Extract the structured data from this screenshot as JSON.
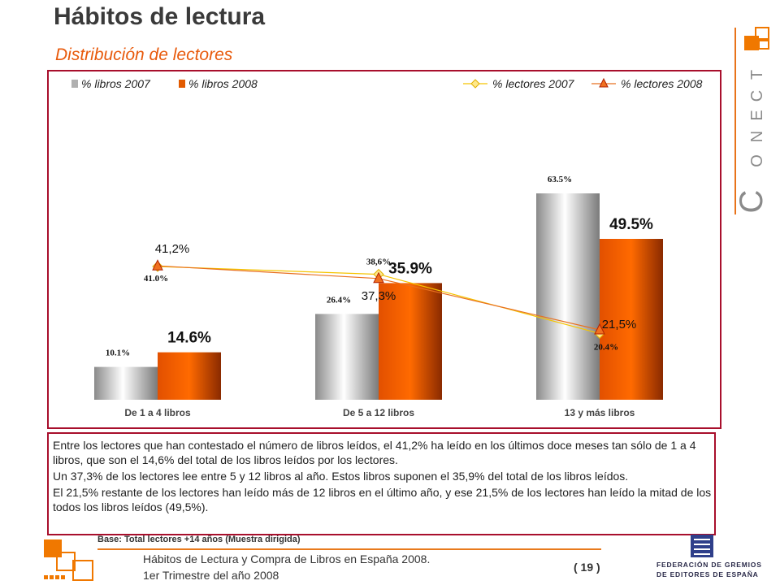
{
  "header": {
    "title": "Hábitos de lectura",
    "subtitle": "Distribución de lectores"
  },
  "brand": {
    "logo_text": "CONECTA"
  },
  "chart_data": {
    "type": "bar",
    "categories": [
      "De 1 a 4 libros",
      "De 5 a 12 libros",
      "13 y más libros"
    ],
    "series": [
      {
        "name": "% libros 2007",
        "kind": "bar",
        "values": [
          10.1,
          26.4,
          63.5
        ],
        "labels": [
          "10.1%",
          "26.4%",
          "63.5%"
        ],
        "color": "#c0c0c0"
      },
      {
        "name": "% libros 2008",
        "kind": "bar",
        "values": [
          14.6,
          35.9,
          49.5
        ],
        "labels": [
          "14.6%",
          "35.9%",
          "49.5%"
        ],
        "color": "#f26000"
      },
      {
        "name": "% lectores 2007",
        "kind": "line",
        "marker": "diamond",
        "values": [
          41.0,
          38.6,
          20.4
        ],
        "labels": [
          "41.0%",
          "38,6%",
          "20.4%"
        ],
        "color": "#f5c400"
      },
      {
        "name": "% lectores 2008",
        "kind": "line",
        "marker": "triangle",
        "values": [
          41.2,
          37.3,
          21.5
        ],
        "labels": [
          "41,2%",
          "37,3%",
          "21,5%"
        ],
        "color": "#e8261c"
      }
    ],
    "ylim": [
      0,
      70
    ],
    "grid": false,
    "legend": "top"
  },
  "body_text": {
    "p1": "Entre los lectores que han contestado el número de libros leídos, el 41,2% ha leído en los últimos doce meses tan sólo de 1 a 4 libros, que son el 14,6% del total de los libros leídos por los lectores.",
    "p2": "Un 37,3% de los lectores lee entre 5 y 12 libros al año. Estos libros suponen el 35,9% del total de los libros leídos.",
    "p3": "El 21,5% restante de los lectores han leído más de 12 libros en el último año, y ese 21,5% de los lectores han leído la mitad de los todos los libros leídos (49,5%)."
  },
  "footer": {
    "base_note": "Base: Total lectores +14 años (Muestra dirigida)",
    "line1": "Hábitos de Lectura y Compra de Libros en España 2008.",
    "line2": "1er Trimestre del año 2008",
    "page": "( 19 )",
    "publisher_line1": "FEDERACIÓN DE GREMIOS",
    "publisher_line2": "DE EDITORES DE ESPAÑA"
  }
}
